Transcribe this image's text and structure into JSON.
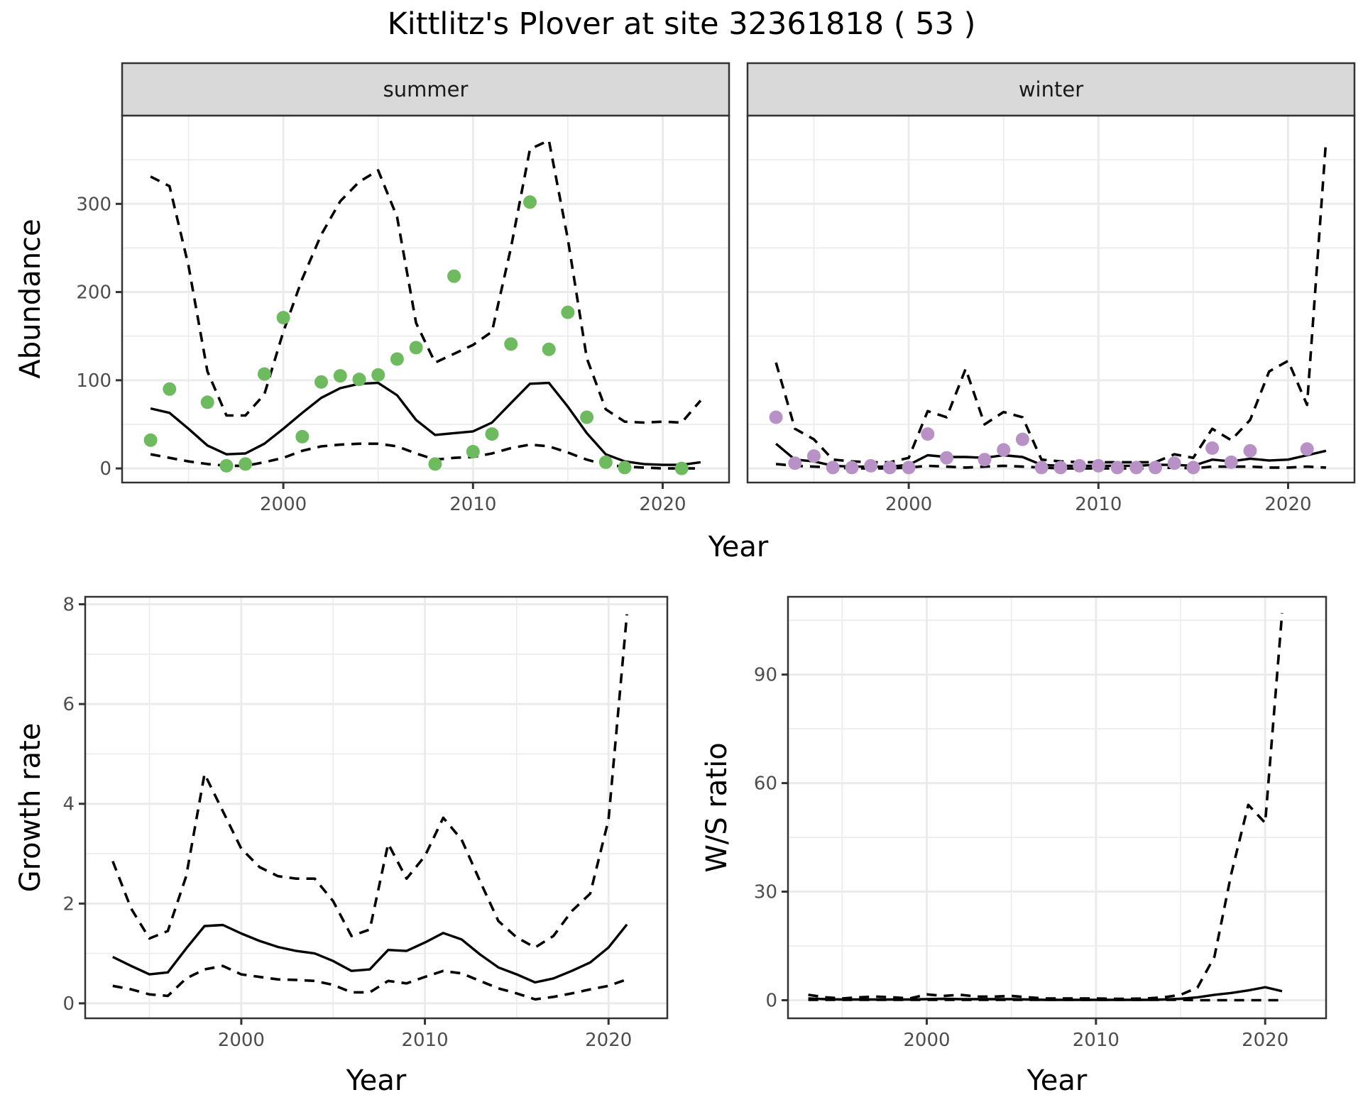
{
  "title": "Kittlitz's Plover at site 32361818 ( 53 )",
  "colors": {
    "summer_points": "#6dbb5e",
    "winter_points": "#b892c7",
    "lines": "#000000",
    "grid": "#ebebeb",
    "strip_fill": "#d9d9d9",
    "panel_border": "#333333"
  },
  "chart_data": [
    {
      "type": "scatter+line",
      "panel": "summer",
      "strip_label": "summer",
      "xlabel": "Year",
      "ylabel": "Abundance",
      "xlim": [
        1991.5,
        2023.5
      ],
      "ylim": [
        -16,
        400
      ],
      "xticks": [
        2000,
        2010,
        2020
      ],
      "xtick_labels": [
        "2000",
        "2010",
        "2020"
      ],
      "yticks": [
        0,
        100,
        200,
        300
      ],
      "ytick_labels": [
        "0",
        "100",
        "200",
        "300"
      ],
      "grid": true,
      "points": {
        "x": [
          1993,
          1994,
          1996,
          1997,
          1998,
          1999,
          2000,
          2001,
          2002,
          2003,
          2004,
          2005,
          2006,
          2007,
          2008,
          2009,
          2010,
          2011,
          2012,
          2013,
          2014,
          2015,
          2016,
          2017,
          2018,
          2021
        ],
        "y": [
          32,
          90,
          75,
          3,
          5,
          107,
          171,
          36,
          98,
          105,
          101,
          106,
          124,
          137,
          5,
          218,
          19,
          39,
          141,
          302,
          135,
          177,
          58,
          7,
          1,
          0
        ]
      },
      "x": [
        1993,
        1994,
        1995,
        1996,
        1997,
        1998,
        1999,
        2000,
        2001,
        2002,
        2003,
        2004,
        2005,
        2006,
        2007,
        2008,
        2009,
        2010,
        2011,
        2012,
        2013,
        2014,
        2015,
        2016,
        2017,
        2018,
        2019,
        2020,
        2021,
        2022
      ],
      "series": [
        {
          "name": "mean",
          "style": "solid",
          "values": [
            68,
            63,
            45,
            26,
            16,
            17,
            28,
            45,
            63,
            80,
            91,
            96,
            97,
            83,
            55,
            38,
            40,
            42,
            52,
            74,
            96,
            97,
            70,
            40,
            16,
            8,
            5,
            4,
            4,
            7
          ]
        },
        {
          "name": "upper",
          "style": "dashed",
          "values": [
            331,
            320,
            230,
            110,
            60,
            60,
            84,
            155,
            215,
            265,
            303,
            325,
            338,
            285,
            165,
            120,
            130,
            140,
            155,
            250,
            362,
            372,
            260,
            125,
            67,
            53,
            52,
            53,
            52,
            77
          ]
        },
        {
          "name": "lower",
          "style": "dashed",
          "values": [
            16,
            12,
            8,
            5,
            3,
            3,
            7,
            12,
            20,
            25,
            27,
            28,
            28,
            25,
            17,
            10,
            12,
            13,
            17,
            23,
            27,
            25,
            18,
            10,
            4,
            2,
            1,
            0,
            0,
            0
          ]
        }
      ]
    },
    {
      "type": "scatter+line",
      "panel": "winter",
      "strip_label": "winter",
      "xlabel": "Year",
      "ylabel": "Abundance",
      "xlim": [
        1991.5,
        2023.5
      ],
      "ylim": [
        -16,
        400
      ],
      "xticks": [
        2000,
        2010,
        2020
      ],
      "xtick_labels": [
        "2000",
        "2010",
        "2020"
      ],
      "yticks": [
        0,
        100,
        200,
        300
      ],
      "grid": true,
      "points": {
        "x": [
          1993,
          1994,
          1995,
          1996,
          1997,
          1998,
          1999,
          2000,
          2001,
          2002,
          2004,
          2005,
          2006,
          2007,
          2008,
          2009,
          2010,
          2011,
          2012,
          2013,
          2014,
          2015,
          2016,
          2017,
          2018,
          2021
        ],
        "y": [
          58,
          6,
          14,
          1,
          1,
          3,
          1,
          1,
          39,
          12,
          10,
          21,
          33,
          1,
          1,
          3,
          3,
          1,
          1,
          1,
          6,
          1,
          23,
          7,
          20,
          22
        ]
      },
      "x": [
        1993,
        1994,
        1995,
        1996,
        1997,
        1998,
        1999,
        2000,
        2001,
        2002,
        2003,
        2004,
        2005,
        2006,
        2007,
        2008,
        2009,
        2010,
        2011,
        2012,
        2013,
        2014,
        2015,
        2016,
        2017,
        2018,
        2019,
        2020,
        2021,
        2022
      ],
      "series": [
        {
          "name": "mean",
          "style": "solid",
          "values": [
            28,
            10,
            8,
            3,
            2,
            2,
            2,
            4,
            15,
            13,
            13,
            12,
            15,
            13,
            4,
            3,
            3,
            3,
            3,
            3,
            4,
            4,
            3,
            10,
            8,
            11,
            9,
            10,
            15,
            20
          ]
        },
        {
          "name": "upper",
          "style": "dashed",
          "values": [
            120,
            45,
            33,
            10,
            8,
            7,
            7,
            12,
            65,
            58,
            113,
            50,
            64,
            58,
            10,
            8,
            7,
            7,
            7,
            7,
            7,
            16,
            12,
            45,
            32,
            55,
            110,
            122,
            72,
            372
          ]
        },
        {
          "name": "lower",
          "style": "dashed",
          "values": [
            5,
            3,
            2,
            1,
            0,
            0,
            0,
            1,
            3,
            2,
            1,
            2,
            3,
            2,
            1,
            0,
            0,
            0,
            0,
            0,
            0,
            1,
            0,
            2,
            2,
            2,
            1,
            1,
            2,
            1
          ]
        }
      ]
    },
    {
      "type": "line",
      "panel": "growth",
      "xlabel": "Year",
      "ylabel": "Growth rate",
      "xlim": [
        1991.5,
        2023.2
      ],
      "ylim": [
        -0.3,
        8.15
      ],
      "xticks": [
        2000,
        2010,
        2020
      ],
      "xtick_labels": [
        "2000",
        "2010",
        "2020"
      ],
      "yticks": [
        0,
        2,
        4,
        6,
        8
      ],
      "ytick_labels": [
        "0",
        "2",
        "4",
        "6",
        "8"
      ],
      "grid": true,
      "x": [
        1993,
        1994,
        1995,
        1996,
        1997,
        1998,
        1999,
        2000,
        2001,
        2002,
        2003,
        2004,
        2005,
        2006,
        2007,
        2008,
        2009,
        2010,
        2011,
        2012,
        2013,
        2014,
        2015,
        2016,
        2017,
        2018,
        2019,
        2020,
        2021
      ],
      "series": [
        {
          "name": "mean",
          "style": "solid",
          "values": [
            0.93,
            0.75,
            0.58,
            0.62,
            1.1,
            1.55,
            1.57,
            1.4,
            1.25,
            1.13,
            1.05,
            1.0,
            0.85,
            0.65,
            0.68,
            1.07,
            1.05,
            1.22,
            1.41,
            1.28,
            0.98,
            0.72,
            0.58,
            0.42,
            0.5,
            0.65,
            0.82,
            1.12,
            1.58
          ]
        },
        {
          "name": "upper",
          "style": "dashed",
          "values": [
            2.85,
            1.9,
            1.3,
            1.45,
            2.55,
            4.6,
            3.85,
            3.1,
            2.73,
            2.55,
            2.5,
            2.5,
            2.05,
            1.35,
            1.48,
            3.2,
            2.5,
            2.95,
            3.72,
            3.28,
            2.45,
            1.65,
            1.32,
            1.12,
            1.35,
            1.85,
            2.2,
            3.68,
            7.8
          ]
        },
        {
          "name": "lower",
          "style": "dashed",
          "values": [
            0.35,
            0.28,
            0.18,
            0.15,
            0.5,
            0.68,
            0.75,
            0.58,
            0.53,
            0.48,
            0.47,
            0.45,
            0.37,
            0.22,
            0.22,
            0.45,
            0.4,
            0.53,
            0.65,
            0.6,
            0.45,
            0.3,
            0.2,
            0.08,
            0.13,
            0.2,
            0.28,
            0.35,
            0.48
          ]
        }
      ]
    },
    {
      "type": "line",
      "panel": "ratio",
      "xlabel": "Year",
      "ylabel": "W/S ratio",
      "xlim": [
        1991.8,
        2023.6
      ],
      "ylim": [
        -5,
        111.5
      ],
      "xticks": [
        2000,
        2010,
        2020
      ],
      "xtick_labels": [
        "2000",
        "2010",
        "2020"
      ],
      "yticks": [
        0,
        30,
        60,
        90
      ],
      "ytick_labels": [
        "0",
        "30",
        "60",
        "90"
      ],
      "grid": true,
      "x": [
        1993,
        1994,
        1995,
        1996,
        1997,
        1998,
        1999,
        2000,
        2001,
        2002,
        2003,
        2004,
        2005,
        2006,
        2007,
        2008,
        2009,
        2010,
        2011,
        2012,
        2013,
        2014,
        2015,
        2016,
        2017,
        2018,
        2019,
        2020,
        2021
      ],
      "series": [
        {
          "name": "mean",
          "style": "solid",
          "values": [
            0.5,
            0.3,
            0.2,
            0.2,
            0.2,
            0.2,
            0.2,
            0.3,
            0.4,
            0.3,
            0.3,
            0.3,
            0.3,
            0.2,
            0.1,
            0.1,
            0.1,
            0.1,
            0.1,
            0.1,
            0.1,
            0.2,
            0.4,
            0.8,
            1.5,
            2.0,
            2.7,
            3.6,
            2.5
          ]
        },
        {
          "name": "upper",
          "style": "dashed",
          "values": [
            1.5,
            0.8,
            0.5,
            0.8,
            1.0,
            0.8,
            0.5,
            1.6,
            1.2,
            1.5,
            1.0,
            1.0,
            1.2,
            0.8,
            0.5,
            0.5,
            0.5,
            0.5,
            0.4,
            0.4,
            0.5,
            0.8,
            1.5,
            3.5,
            12,
            35,
            54,
            49,
            107
          ]
        },
        {
          "name": "lower",
          "style": "dashed",
          "values": [
            0.1,
            0.1,
            0.1,
            0.1,
            0.1,
            0.1,
            0.1,
            0.1,
            0.1,
            0.1,
            0.1,
            0.1,
            0.1,
            0.1,
            0.1,
            0.1,
            0.1,
            0.1,
            0.1,
            0.1,
            0.1,
            0.1,
            0.1,
            0.0,
            0.0,
            0.0,
            0.0,
            0.0,
            0.0
          ]
        }
      ]
    }
  ]
}
